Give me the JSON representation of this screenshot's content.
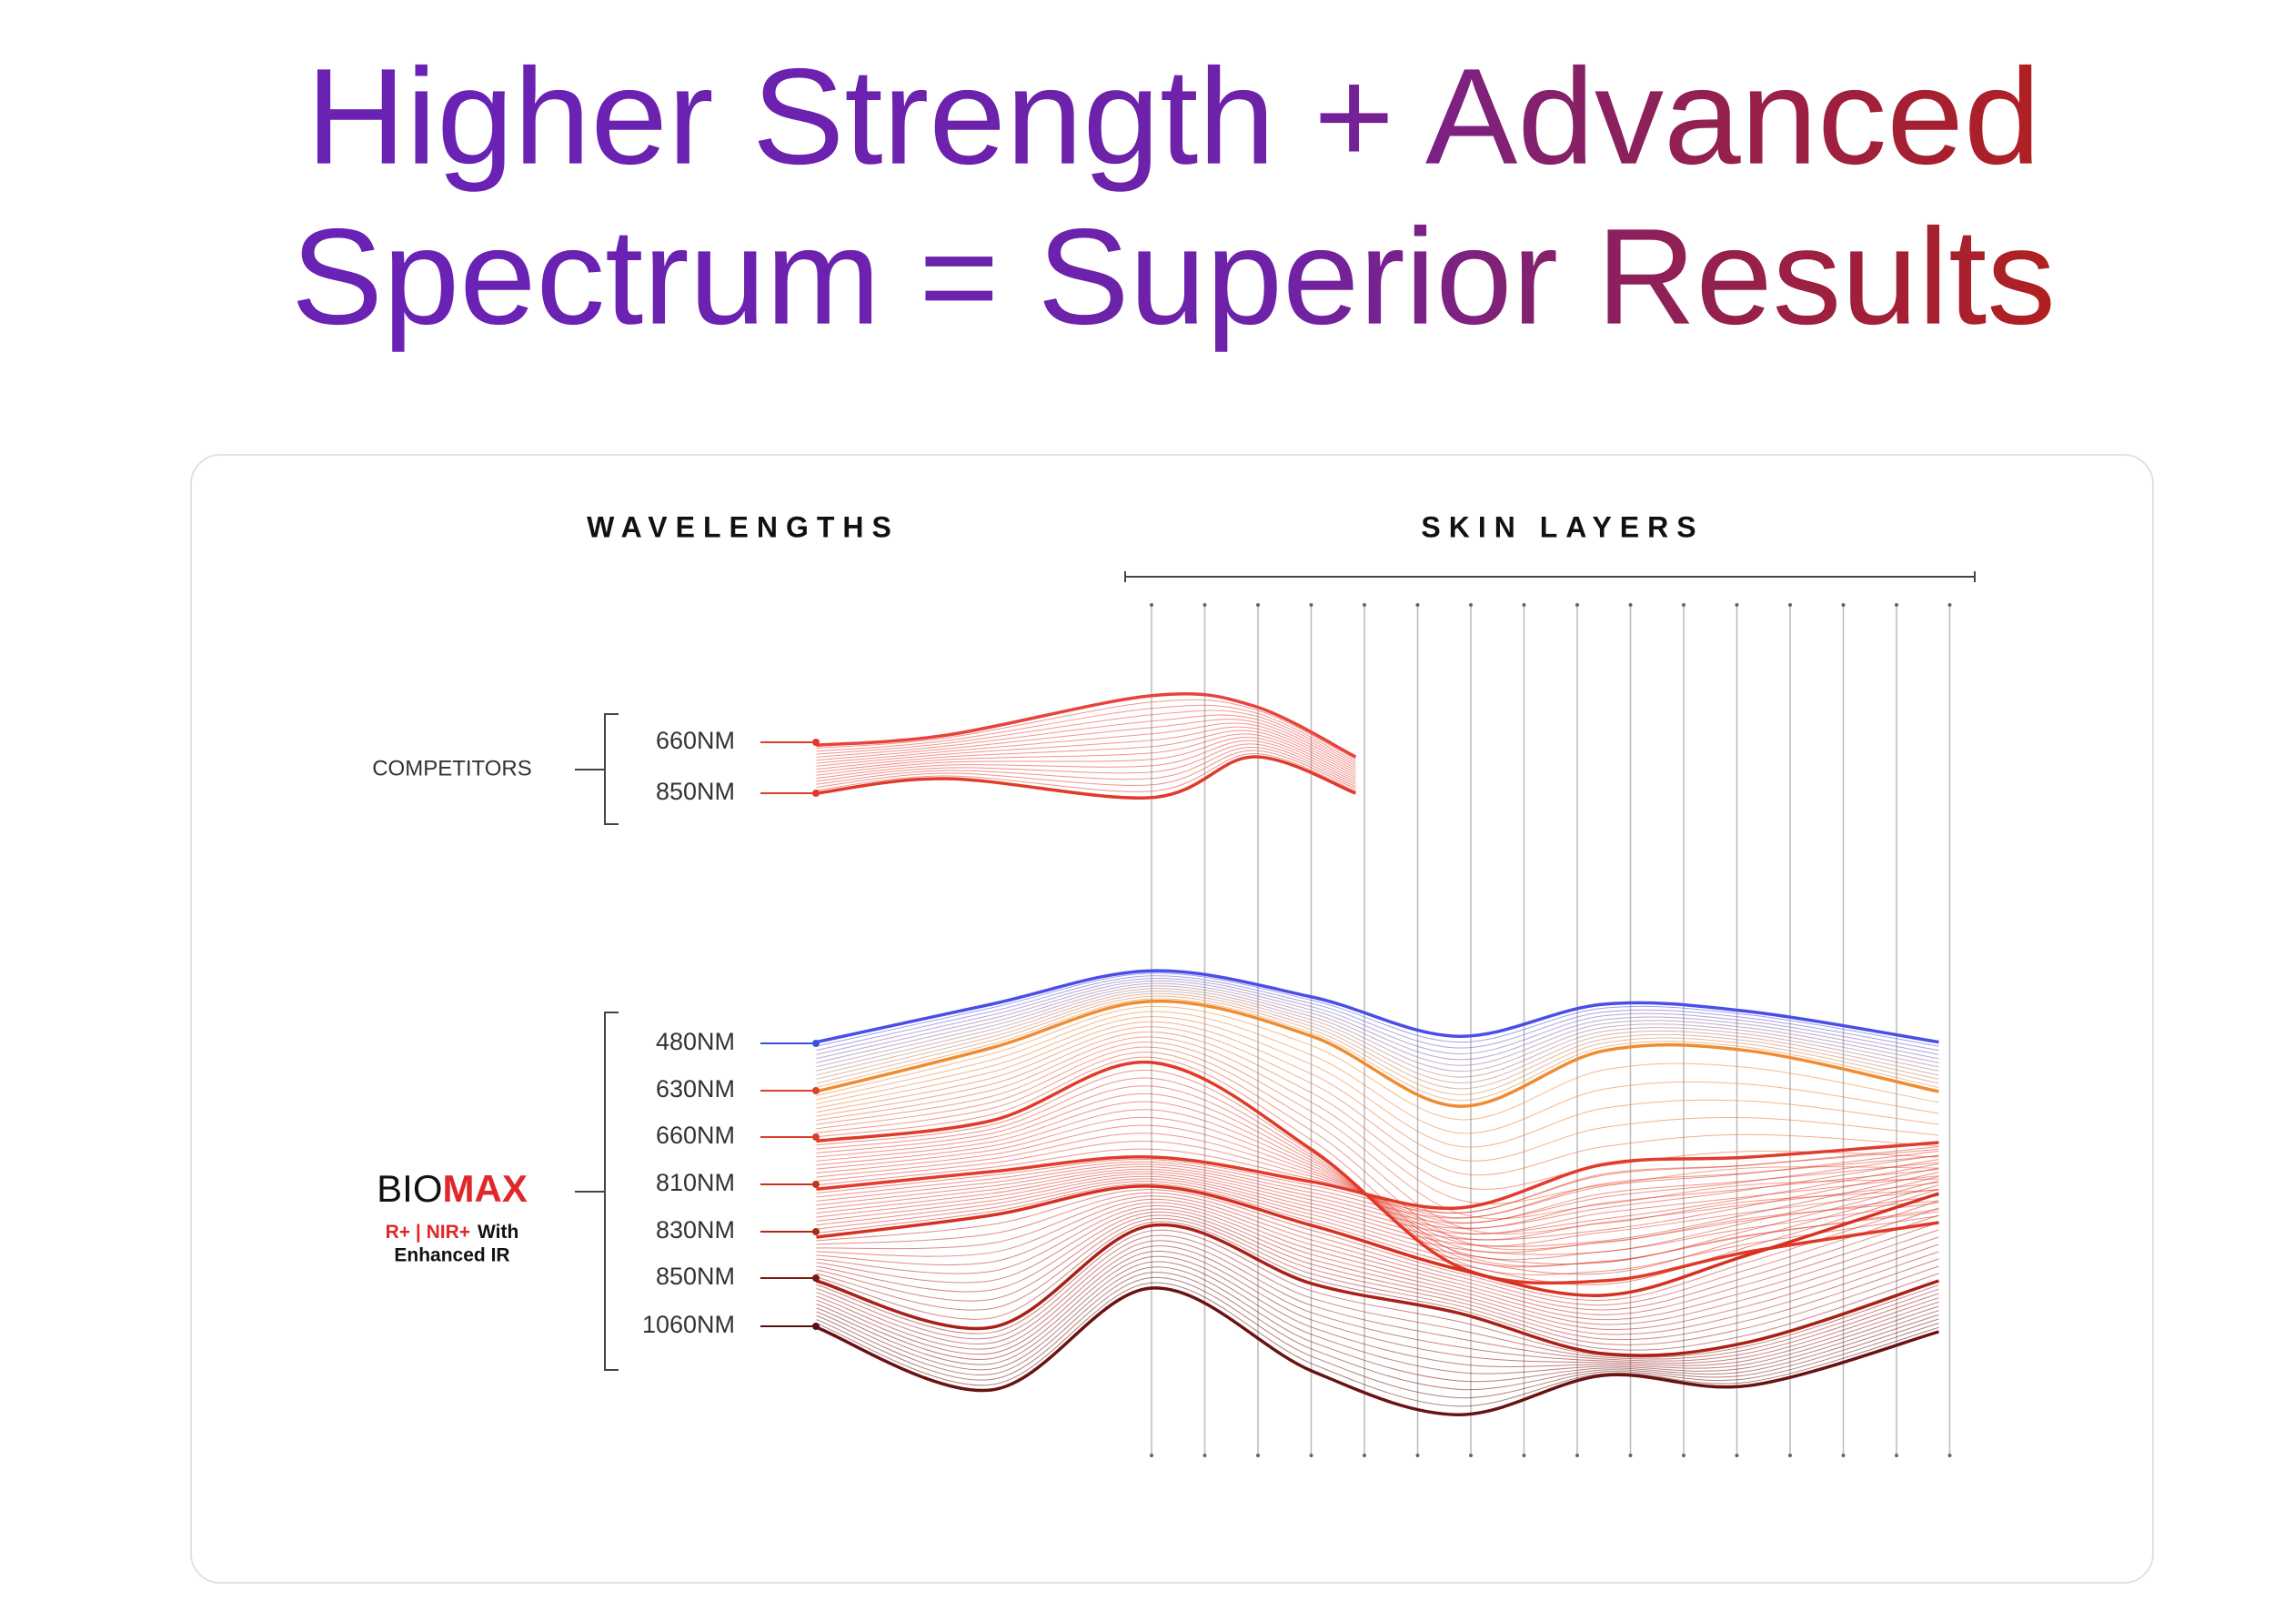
{
  "title": {
    "lines": [
      "Higher Strength + Advanced",
      "Spectrum = Superior Results"
    ]
  },
  "panel": {
    "wavelengths_heading": "WAVELENGTHS",
    "skin_layers_heading": "SKIN LAYERS",
    "competitors": {
      "label": "COMPETITORS",
      "wavelengths": [
        "660NM",
        "850NM"
      ]
    },
    "biomax": {
      "brand_prefix": "BIO",
      "brand_suffix": "MAX",
      "tagline": [
        "R+ | NIR+",
        "With",
        "Enhanced IR"
      ],
      "wavelengths": [
        "480NM",
        "630NM",
        "660NM",
        "810NM",
        "830NM",
        "850NM",
        "1060NM"
      ]
    }
  }
}
